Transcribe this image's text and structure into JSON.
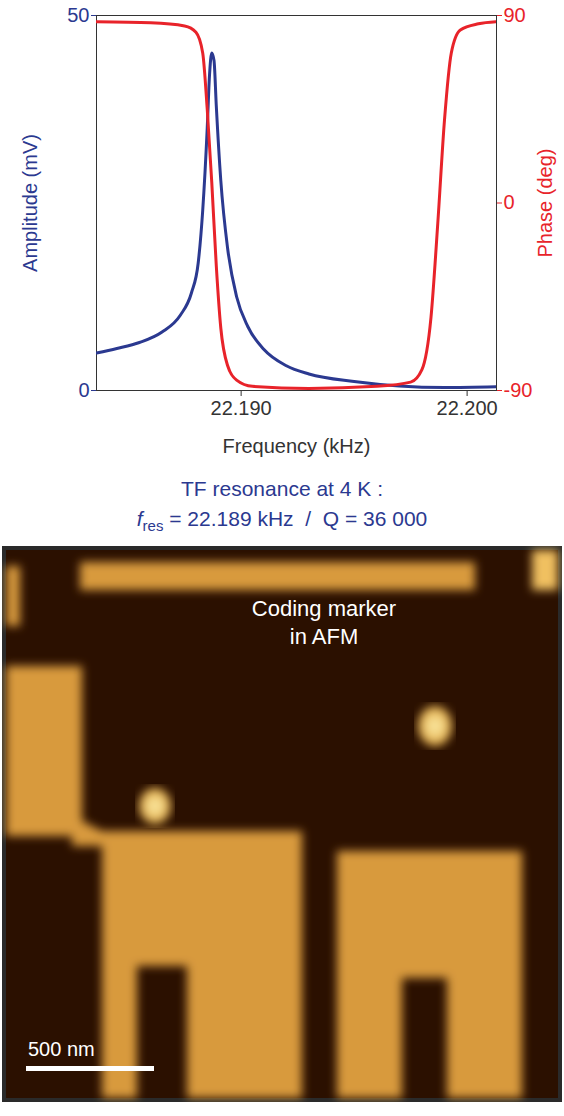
{
  "chart_data": {
    "type": "line",
    "xlabel": "Frequency (kHz)",
    "ylabel": "Amplitude (mV)",
    "y2label": "Phase (deg)",
    "xlim": [
      22.1836,
      22.2013
    ],
    "xticks": [
      {
        "value": 22.19,
        "label": "22.190"
      },
      {
        "value": 22.2,
        "label": "22.200"
      }
    ],
    "ylim": [
      0,
      50
    ],
    "yticks": [
      0,
      50
    ],
    "y2lim": [
      -90,
      90
    ],
    "y2ticks": [
      -90,
      0,
      90
    ],
    "series": [
      {
        "name": "Amplitude",
        "color": "#2b3990",
        "axis": "y",
        "x": [
          22.1836,
          22.1845,
          22.1855,
          22.1865,
          22.1873,
          22.1878,
          22.1881,
          22.1883,
          22.1885,
          22.1886,
          22.1887,
          22.1888,
          22.1889,
          22.1891,
          22.1894,
          22.1898,
          22.1903,
          22.191,
          22.192,
          22.193,
          22.195,
          22.197,
          22.199,
          22.2013
        ],
        "values": [
          5.0,
          5.6,
          6.4,
          7.8,
          10,
          13,
          17,
          24,
          35,
          42,
          45,
          44,
          38,
          28,
          19,
          12.5,
          8.5,
          5.5,
          3.3,
          2.2,
          1.2,
          0.6,
          0.4,
          0.5
        ]
      },
      {
        "name": "Phase",
        "color": "#e8232a",
        "axis": "y2",
        "x": [
          22.1836,
          22.186,
          22.1875,
          22.188,
          22.1883,
          22.1885,
          22.1887,
          22.1889,
          22.1891,
          22.1894,
          22.1898,
          22.1905,
          22.193,
          22.196,
          22.1975,
          22.198,
          22.1984,
          22.1987,
          22.199,
          22.1993,
          22.1997,
          22.2005,
          22.2013
        ],
        "values": [
          87,
          86.5,
          85,
          82,
          72,
          45,
          10,
          -30,
          -60,
          -78,
          -85,
          -88,
          -89,
          -88,
          -86,
          -80,
          -55,
          -10,
          40,
          72,
          83,
          86,
          87
        ]
      }
    ],
    "caption": {
      "line1": "TF resonance at 4 K :",
      "symbol": "f",
      "subscript": "res",
      "rest": " = 22.189 kHz  /  Q = 36 000"
    }
  },
  "image": {
    "label_lines": [
      "Coding marker",
      "in AFM"
    ],
    "scale_bar": "500 nm"
  }
}
